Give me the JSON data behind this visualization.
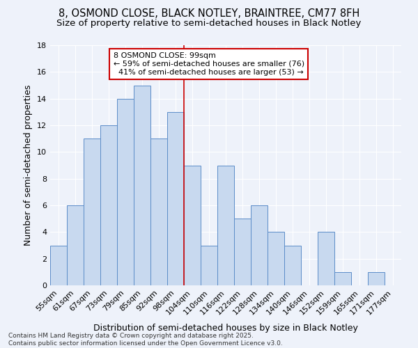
{
  "title_line1": "8, OSMOND CLOSE, BLACK NOTLEY, BRAINTREE, CM77 8FH",
  "title_line2": "Size of property relative to semi-detached houses in Black Notley",
  "xlabel": "Distribution of semi-detached houses by size in Black Notley",
  "ylabel": "Number of semi-detached properties",
  "footnote": "Contains HM Land Registry data © Crown copyright and database right 2025.\nContains public sector information licensed under the Open Government Licence v3.0.",
  "categories": [
    "55sqm",
    "61sqm",
    "67sqm",
    "73sqm",
    "79sqm",
    "85sqm",
    "92sqm",
    "98sqm",
    "104sqm",
    "110sqm",
    "116sqm",
    "122sqm",
    "128sqm",
    "134sqm",
    "140sqm",
    "146sqm",
    "152sqm",
    "159sqm",
    "165sqm",
    "171sqm",
    "177sqm"
  ],
  "values": [
    3,
    6,
    11,
    12,
    14,
    15,
    11,
    13,
    9,
    3,
    9,
    5,
    6,
    4,
    3,
    0,
    4,
    1,
    0,
    1,
    0
  ],
  "bar_color": "#c8d9ef",
  "bar_edge_color": "#5b8cc8",
  "bar_edge_width": 0.7,
  "property_label": "8 OSMOND CLOSE: 99sqm",
  "pct_smaller": 59,
  "count_smaller": 76,
  "pct_larger": 41,
  "count_larger": 53,
  "vline_color": "#cc0000",
  "annotation_box_edge_color": "#cc0000",
  "vline_index": 7.5,
  "ylim": [
    0,
    18
  ],
  "yticks": [
    0,
    2,
    4,
    6,
    8,
    10,
    12,
    14,
    16,
    18
  ],
  "bg_color": "#eef2fa",
  "grid_color": "#ffffff",
  "title_fontsize": 10.5,
  "subtitle_fontsize": 9.5,
  "axis_label_fontsize": 9,
  "tick_fontsize": 8,
  "annot_fontsize": 8,
  "footnote_fontsize": 6.5
}
